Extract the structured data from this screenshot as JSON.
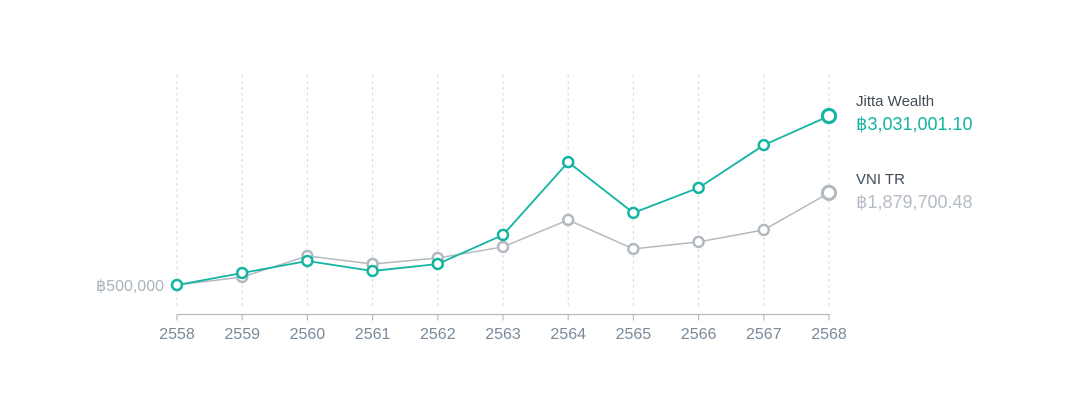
{
  "chart_data": {
    "type": "line",
    "title": "",
    "xlabel": "",
    "ylabel": "",
    "categories": [
      "2558",
      "2559",
      "2560",
      "2561",
      "2562",
      "2563",
      "2564",
      "2565",
      "2566",
      "2567",
      "2568"
    ],
    "series": [
      {
        "name": "Jitta Wealth",
        "color": "#13b5a2",
        "final_value_label": "฿3,031,001.10",
        "values": [
          500000,
          680000,
          860000,
          710000,
          815000,
          1250000,
          2340000,
          1580000,
          1955000,
          2595000,
          3031001.1
        ]
      },
      {
        "name": "VNI TR",
        "color": "#b2b9c0",
        "final_value_label": "฿1,879,700.48",
        "values": [
          500000,
          620000,
          935000,
          815000,
          905000,
          1070000,
          1475000,
          1040000,
          1145000,
          1325000,
          1879700.48
        ]
      }
    ],
    "baseline_label": "฿500,000",
    "baseline_value": 500000,
    "ylim": [
      500000,
      3200000
    ],
    "grid": "vertical-dashed",
    "legend_position": "right"
  },
  "colors": {
    "accent_teal": "#13b5a2",
    "series_gray": "#b2b9c0",
    "gridline": "#d9d9d9",
    "axis": "#b4bac0",
    "tick_label": "#7b8a99",
    "baseline_label": "#aab4bd",
    "legend_name": "#3f4c57",
    "legend_value_gray": "#b6bdc4"
  }
}
